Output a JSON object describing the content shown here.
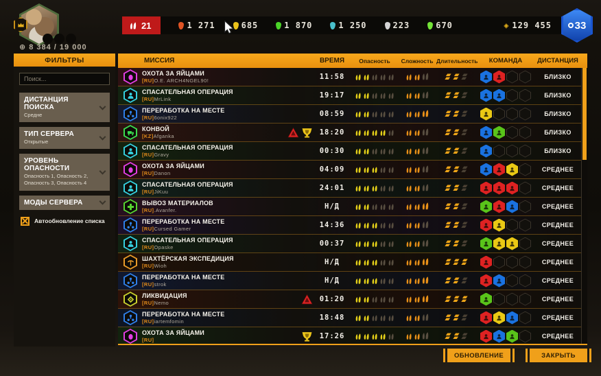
{
  "topbar": {
    "danger_badge": "21",
    "resources": [
      {
        "value": "1 271",
        "color": "#e05424"
      },
      {
        "value": "685",
        "color": "#eac21a"
      },
      {
        "value": "1 870",
        "color": "#4ad428"
      },
      {
        "value": "1 250",
        "color": "#49c0cc"
      },
      {
        "value": "223",
        "color": "#d4d4d4"
      },
      {
        "value": "670",
        "color": "#74e438"
      }
    ],
    "coins": "129 455",
    "level": "33",
    "xp": "8 384 / 19 000"
  },
  "sidebar": {
    "title": "ФИЛЬТРЫ",
    "search_placeholder": "Поиск...",
    "dropdowns": [
      {
        "label": "ДИСТАНЦИЯ ПОИСКА",
        "value": "Средне"
      },
      {
        "label": "ТИП СЕРВЕРА",
        "value": "Открытые"
      },
      {
        "label": "УРОВЕНЬ ОПАСНОСТИ",
        "value": "Опасность 1, Опасность 2, Опасность 3, Опасность 4"
      },
      {
        "label": "МОДЫ СЕРВЕРА",
        "value": ""
      }
    ],
    "autorefresh_label": "Автообновление списка",
    "autorefresh_checked": true
  },
  "table": {
    "columns": [
      "МИССИЯ",
      "ВРЕМЯ",
      "Опасность",
      "Сложность",
      "Длительность",
      "КОМАНДА",
      "ДИСТАНЦИЯ"
    ],
    "team_colors": {
      "blue": "#1a72e0",
      "red": "#de2222",
      "yellow": "#eac914",
      "green": "#59c41a"
    },
    "pip_colors": {
      "danger": "#e6d119",
      "difficulty": "#e89018",
      "duration": "#eda418",
      "dim": "#584e40",
      "dur_dim": "#4a4033"
    },
    "rows": [
      {
        "mission": "ОХОТА ЗА ЯЙЦАМИ",
        "region": "[RU]",
        "player": "O.E. ARCH4NGEL90!",
        "icon": "egg-icon",
        "color": "#e23ee2",
        "time": "11:58",
        "danger": 2,
        "difficulty": 2,
        "duration": 2,
        "team": [
          "blue",
          "red"
        ],
        "badges": [],
        "distance": "БЛИЗКО",
        "tint": "#2e1113"
      },
      {
        "mission": "СПАСАТЕЛЬНАЯ ОПЕРАЦИЯ",
        "region": "[RU]",
        "player": "MrLink",
        "icon": "rescue-icon",
        "color": "#35d0de",
        "time": "19:17",
        "danger": 2,
        "difficulty": 2,
        "duration": 2,
        "team": [
          "blue",
          "blue"
        ],
        "badges": [],
        "distance": "БЛИЗКО",
        "tint": "#122310"
      },
      {
        "mission": "ПЕРЕРАБОТКА НА МЕСТЕ",
        "region": "[RU]",
        "player": "6onix922",
        "icon": "recycle-icon",
        "color": "#2f7fe8",
        "time": "08:59",
        "danger": 2,
        "difficulty": 3,
        "duration": 2,
        "team": [
          "yellow"
        ],
        "badges": [],
        "distance": "БЛИЗКО",
        "tint": "#141a30"
      },
      {
        "mission": "КОНВОЙ",
        "region": "[KZ]",
        "player": "Afganka",
        "icon": "convoy-icon",
        "color": "#3bdc4e",
        "time": "18:20",
        "danger": 4,
        "difficulty": 2,
        "duration": 2,
        "team": [
          "blue",
          "green"
        ],
        "badges": [
          "warning",
          "trophy"
        ],
        "distance": "БЛИЗКО",
        "tint": "#2e1410"
      },
      {
        "mission": "СПАСАТЕЛЬНАЯ ОПЕРАЦИЯ",
        "region": "[RU]",
        "player": "Gravy",
        "icon": "rescue-icon",
        "color": "#35d0de",
        "time": "00:30",
        "danger": 2,
        "difficulty": 2,
        "duration": 2,
        "team": [
          "blue"
        ],
        "badges": [],
        "distance": "БЛИЗКО",
        "tint": "#13230f"
      },
      {
        "mission": "ОХОТА ЗА ЯЙЦАМИ",
        "region": "[RU]",
        "player": "Danon",
        "icon": "egg-icon",
        "color": "#e23ee2",
        "time": "04:09",
        "danger": 3,
        "difficulty": 2,
        "duration": 2,
        "team": [
          "blue",
          "red",
          "yellow"
        ],
        "badges": [],
        "distance": "СРЕДНЕЕ",
        "tint": "#2a100f"
      },
      {
        "mission": "СПАСАТЕЛЬНАЯ ОПЕРАЦИЯ",
        "region": "[RU]",
        "player": "JiKuu",
        "icon": "rescue-icon",
        "color": "#35d0de",
        "time": "24:01",
        "danger": 3,
        "difficulty": 2,
        "duration": 2,
        "team": [
          "red",
          "red",
          "red"
        ],
        "badges": [],
        "distance": "СРЕДНЕЕ",
        "tint": "#0f211c"
      },
      {
        "mission": "ВЫВОЗ МАТЕРИАЛОВ",
        "region": "[RU]",
        "player": ".Avanfer.",
        "icon": "materials-icon",
        "color": "#57d431",
        "time": "Н/Д",
        "danger": 2,
        "difficulty": 3,
        "duration": 2,
        "team": [
          "green",
          "red",
          "blue"
        ],
        "badges": [],
        "distance": "СРЕДНЕЕ",
        "tint": "#26101f"
      },
      {
        "mission": "ПЕРЕРАБОТКА НА МЕСТЕ",
        "region": "[RU]",
        "player": "Cursed Gamer",
        "icon": "recycle-icon",
        "color": "#2f7fe8",
        "time": "14:36",
        "danger": 3,
        "difficulty": 2,
        "duration": 2,
        "team": [
          "red",
          "yellow"
        ],
        "badges": [],
        "distance": "СРЕДНЕЕ",
        "tint": "#1b102a"
      },
      {
        "mission": "СПАСАТЕЛЬНАЯ ОПЕРАЦИЯ",
        "region": "[RU]",
        "player": "Opaske",
        "icon": "rescue-icon",
        "color": "#35d0de",
        "time": "00:37",
        "danger": 3,
        "difficulty": 2,
        "duration": 2,
        "team": [
          "green",
          "yellow",
          "yellow"
        ],
        "badges": [],
        "distance": "СРЕДНЕЕ",
        "tint": "#102212"
      },
      {
        "mission": "ШАХТЁРСКАЯ ЭКСПЕДИЦИЯ",
        "region": "[RU]",
        "player": "Wioh",
        "icon": "mining-icon",
        "color": "#e89a28",
        "time": "Н/Д",
        "danger": 3,
        "difficulty": 3,
        "duration": 3,
        "team": [
          "red"
        ],
        "badges": [],
        "distance": "СРЕДНЕЕ",
        "tint": "#211106"
      },
      {
        "mission": "ПЕРЕРАБОТКА НА МЕСТЕ",
        "region": "[RU]",
        "player": "strok",
        "icon": "recycle-icon",
        "color": "#2f7fe8",
        "time": "Н/Д",
        "danger": 3,
        "difficulty": 3,
        "duration": 2,
        "team": [
          "red",
          "blue"
        ],
        "badges": [],
        "distance": "СРЕДНЕЕ",
        "tint": "#101830"
      },
      {
        "mission": "ЛИКВИДАЦИЯ",
        "region": "[RU]",
        "player": "Nemo",
        "icon": "liquidation-icon",
        "color": "#c9cf2e",
        "time": "01:20",
        "danger": 2,
        "difficulty": 3,
        "duration": 3,
        "team": [
          "green"
        ],
        "badges": [
          "warning"
        ],
        "distance": "СРЕДНЕЕ",
        "tint": "#2e1208"
      },
      {
        "mission": "ПЕРЕРАБОТКА НА МЕСТЕ",
        "region": "[RU]",
        "player": "iartemfomin",
        "icon": "recycle-icon",
        "color": "#2f7fe8",
        "time": "18:48",
        "danger": 2,
        "difficulty": 2,
        "duration": 2,
        "team": [
          "red",
          "yellow",
          "blue"
        ],
        "badges": [],
        "distance": "СРЕДНЕЕ",
        "tint": "#0e1524"
      },
      {
        "mission": "ОХОТА ЗА ЯЙЦАМИ",
        "region": "[RU]",
        "player": "",
        "icon": "egg-icon",
        "color": "#e23ee2",
        "time": "17:26",
        "danger": 4,
        "difficulty": 2,
        "duration": 2,
        "team": [
          "red",
          "blue",
          "green"
        ],
        "badges": [
          "trophy"
        ],
        "distance": "СРЕДНЕЕ",
        "tint": "#12230e"
      }
    ]
  },
  "footer": {
    "refresh_label": "ОБНОВЛЕНИЕ",
    "close_label": "ЗАКРЫТЬ"
  }
}
